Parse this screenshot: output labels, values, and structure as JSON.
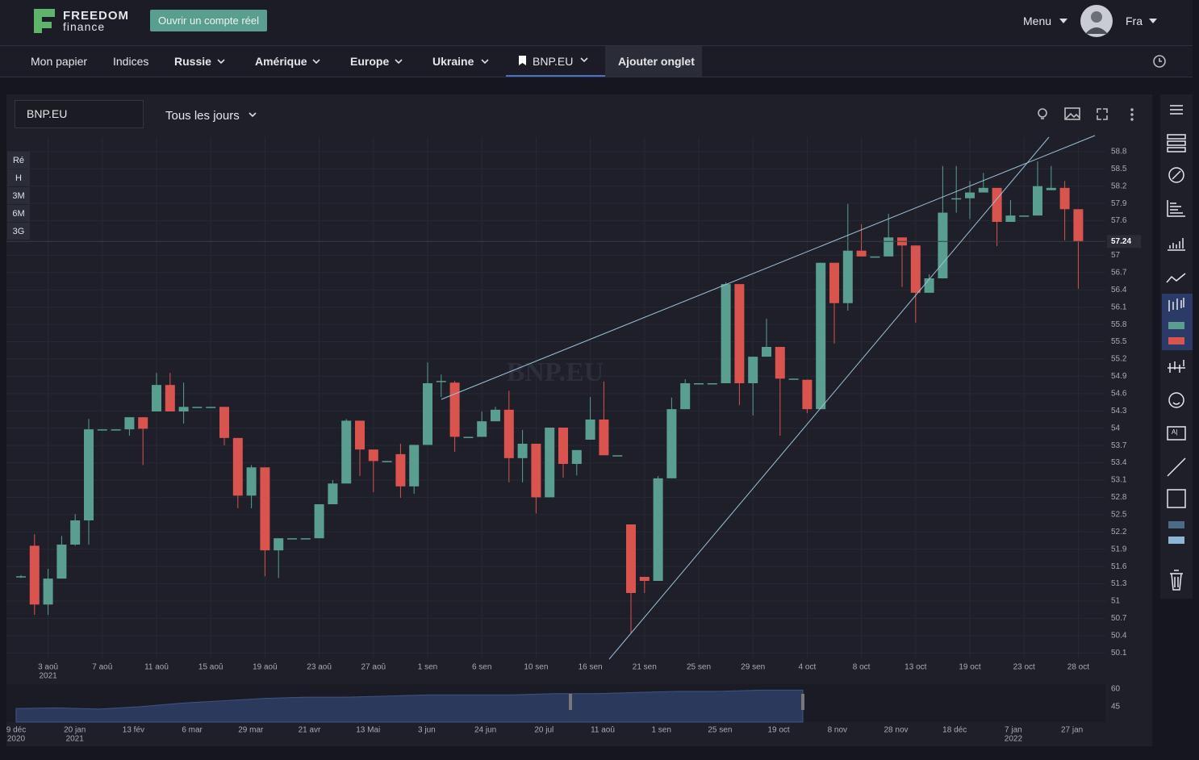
{
  "header": {
    "logo_top": "FREEDOM",
    "logo_bottom": "finance",
    "open_account": "Ouvrir un compte réel",
    "menu": "Menu",
    "language": "Fra"
  },
  "nav": {
    "items": [
      "Mon papier",
      "Indices",
      "Russie",
      "Amérique",
      "Europe",
      "Ukraine",
      "BNP.EU",
      "Ajouter onglet"
    ]
  },
  "toolbar": {
    "symbol": "BNP.EU",
    "interval": "Tous les jours"
  },
  "range_buttons": [
    "Ré",
    "H",
    "3M",
    "6M",
    "3G"
  ],
  "chart_data": {
    "type": "candlestick",
    "watermark": "BNP.EU",
    "up_color": "#5a9e8f",
    "down_color": "#d9534f",
    "grid": true,
    "last_price": 57.24,
    "categories": [
      null,
      null,
      "3 aoû",
      null,
      null,
      null,
      "7 aoû",
      null,
      null,
      null,
      "11 aoû",
      null,
      null,
      null,
      "15 aoû",
      null,
      null,
      null,
      "19 aoû",
      null,
      null,
      null,
      "23 aoû",
      null,
      null,
      null,
      "27 aoû",
      null,
      null,
      null,
      "1 sen",
      null,
      null,
      null,
      "6 sen",
      null,
      null,
      null,
      "10 sen",
      null,
      null,
      null,
      "16 sen",
      null,
      null,
      null,
      "21 sen",
      null,
      null,
      null,
      "25 sen",
      null,
      null,
      null,
      "29 sen",
      null,
      null,
      null,
      "4 oct",
      null,
      null,
      null,
      "8 oct",
      null,
      null,
      null,
      "13 oct",
      null,
      null,
      null,
      "19 oct",
      null,
      null,
      null,
      "23 oct",
      null,
      null,
      null,
      "28 oct"
    ],
    "x_year": "2021",
    "open": [
      51.43,
      51.96,
      50.94,
      51.39,
      51.98,
      52.4,
      53.98,
      53.98,
      53.98,
      54.19,
      54.29,
      54.75,
      54.29,
      54.37,
      54.37,
      54.37,
      53.83,
      52.83,
      53.32,
      51.88,
      52.09,
      52.09,
      52.09,
      52.68,
      53.04,
      54.13,
      53.63,
      53.43,
      53.55,
      52.99,
      53.71,
      54.82,
      54.79,
      53.85,
      53.85,
      54.12,
      54.32,
      53.48,
      53.73,
      52.8,
      54.01,
      53.38,
      53.8,
      54.15,
      53.53,
      52.33,
      51.42,
      51.35,
      53.13,
      54.33,
      54.78,
      54.78,
      54.78,
      56.5,
      54.78,
      55.24,
      55.41,
      54.86,
      54.84,
      54.33,
      56.87,
      56.17,
      57.08,
      56.98,
      56.98,
      57.31,
      57.17,
      56.35,
      56.6,
      57.99,
      57.99,
      58.09,
      58.17,
      57.58,
      57.69,
      57.69,
      58.13,
      58.17,
      57.8
    ],
    "high": [
      51.45,
      52.16,
      51.56,
      52.13,
      52.51,
      54.16,
      53.98,
      53.98,
      54.19,
      54.19,
      54.96,
      54.96,
      54.79,
      54.37,
      54.37,
      54.37,
      53.83,
      53.36,
      53.32,
      52.09,
      52.09,
      52.09,
      52.68,
      53.1,
      54.16,
      54.13,
      53.63,
      53.43,
      53.73,
      53.71,
      55.14,
      54.93,
      54.82,
      53.85,
      54.29,
      54.37,
      54.65,
      53.97,
      53.73,
      54.01,
      54.01,
      53.62,
      54.54,
      54.81,
      53.53,
      52.33,
      51.42,
      53.17,
      54.53,
      54.85,
      54.78,
      54.78,
      56.53,
      56.5,
      55.24,
      55.9,
      55.41,
      54.86,
      54.84,
      56.87,
      56.87,
      57.89,
      57.54,
      56.98,
      57.72,
      57.31,
      57.17,
      56.67,
      58.55,
      58.55,
      58.29,
      58.43,
      58.17,
      57.96,
      57.69,
      58.63,
      58.55,
      58.29,
      57.8
    ],
    "low": [
      51.4,
      50.76,
      50.76,
      51.39,
      51.96,
      51.98,
      53.98,
      53.98,
      53.87,
      53.36,
      54.29,
      54.29,
      54.08,
      54.37,
      54.37,
      53.7,
      52.61,
      52.61,
      51.43,
      51.4,
      52.09,
      52.09,
      52.09,
      52.68,
      53.04,
      53.17,
      52.89,
      53.43,
      52.79,
      52.86,
      53.71,
      54.54,
      53.59,
      53.85,
      53.85,
      54.12,
      53.06,
      53.06,
      52.52,
      52.8,
      53.14,
      53.18,
      53.8,
      53.53,
      53.53,
      50.44,
      51.14,
      51.35,
      53.13,
      54.33,
      54.78,
      54.78,
      54.78,
      54.4,
      54.22,
      55.24,
      53.87,
      54.86,
      54.26,
      54.33,
      55.47,
      56.04,
      56.98,
      56.98,
      56.98,
      56.45,
      55.83,
      56.35,
      56.6,
      57.74,
      57.63,
      58.09,
      57.16,
      57.58,
      57.69,
      57.69,
      58.13,
      57.26,
      56.42
    ],
    "close": [
      51.43,
      50.94,
      51.39,
      51.98,
      52.4,
      53.98,
      53.98,
      53.98,
      54.19,
      53.99,
      54.75,
      54.29,
      54.37,
      54.37,
      54.37,
      53.83,
      52.83,
      53.32,
      51.88,
      52.09,
      52.09,
      52.09,
      52.68,
      53.04,
      54.13,
      53.63,
      53.43,
      53.43,
      52.99,
      53.71,
      54.78,
      54.82,
      53.85,
      53.85,
      54.12,
      54.32,
      53.48,
      53.73,
      52.8,
      54.01,
      53.38,
      53.62,
      54.15,
      53.53,
      53.53,
      51.14,
      51.35,
      53.13,
      54.33,
      54.78,
      54.78,
      54.78,
      56.5,
      54.78,
      55.24,
      55.41,
      54.86,
      54.86,
      54.33,
      56.87,
      56.17,
      57.08,
      56.98,
      56.98,
      57.31,
      57.17,
      56.35,
      56.6,
      57.74,
      57.99,
      58.09,
      58.17,
      57.58,
      57.69,
      57.69,
      58.2,
      58.17,
      57.8,
      57.24
    ],
    "ylim": [
      50.02,
      59.05
    ],
    "yticks": [
      50.1,
      50.4,
      50.7,
      51,
      51.3,
      51.6,
      51.9,
      52.2,
      52.5,
      52.8,
      53.1,
      53.4,
      53.7,
      54,
      54.3,
      54.6,
      54.9,
      55.2,
      55.5,
      55.8,
      56.1,
      56.4,
      56.7,
      57,
      57.6,
      57.9,
      58.2,
      58.5,
      58.8
    ]
  },
  "navigator": {
    "type": "area",
    "color": "#2b3a5c",
    "ylim": [
      32,
      64
    ],
    "yticks": [
      45,
      60
    ],
    "values": [
      43.5,
      44,
      43,
      45,
      48,
      50,
      52,
      53,
      53,
      54,
      55,
      55,
      55,
      56,
      56,
      57,
      58,
      58,
      59,
      59
    ],
    "x_labels": [
      {
        "label": "9 déc",
        "year": "2020"
      },
      {
        "label": "20 jan",
        "year": "2021"
      },
      "13 fév",
      "6 mar",
      "29 mar",
      "21 avr",
      "13 Mai",
      "3 jun",
      "24 jun",
      "20 jul",
      "11 aoû",
      "1 sen",
      "25 sen",
      "19 oct",
      "8 nov",
      "28 nov",
      "18 déc",
      {
        "label": "7 jan",
        "year": "2022"
      },
      "27 jan"
    ]
  }
}
